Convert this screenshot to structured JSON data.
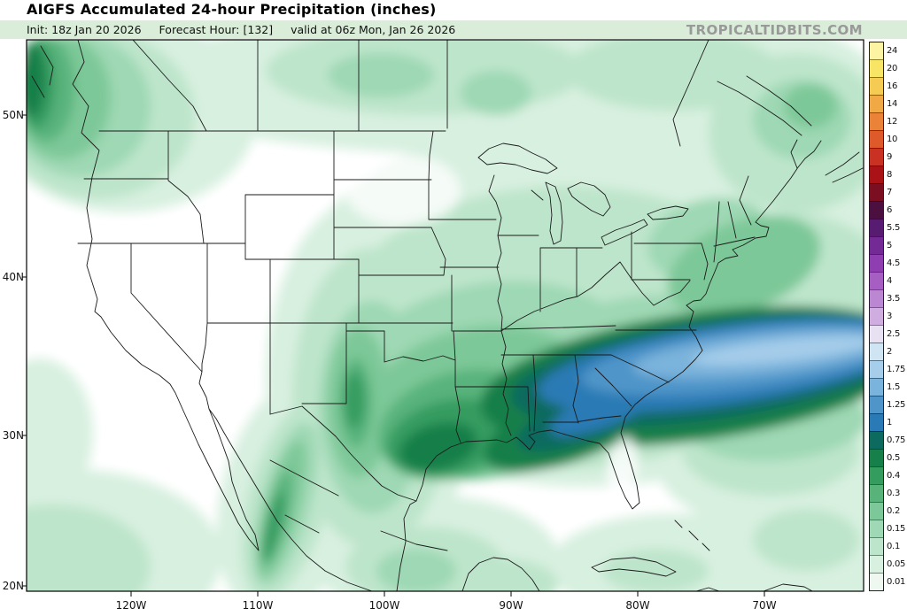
{
  "header": {
    "title": "AIGFS Accumulated 24-hour Precipitation (inches)",
    "init_label": "Init: 18z Jan 20 2026",
    "forecast_label": "Forecast Hour: [132]",
    "valid_label": "valid at 06z Mon, Jan 26 2026",
    "watermark": "TROPICALTIDBITS.COM"
  },
  "chart_data": {
    "type": "heatmap",
    "title": "AIGFS Accumulated 24-hour Precipitation (inches)",
    "model": "AIGFS",
    "init_time": "18z Jan 20 2026",
    "forecast_hour": "132",
    "valid_time": "06z Mon, Jan 26 2026",
    "units": "inches",
    "region": "Continental United States (approx 20N-55N, 125W-65W)",
    "axes": {
      "lat_ticks": [
        "50N",
        "40N",
        "30N",
        "20N"
      ],
      "lon_ticks": [
        "120W",
        "110W",
        "100W",
        "90W",
        "80W",
        "70W"
      ],
      "grid": false
    },
    "colorbar": {
      "position": "right",
      "levels_top_to_bottom": [
        {
          "label": "24",
          "color": "#fcf4a3"
        },
        {
          "label": "20",
          "color": "#f8e566"
        },
        {
          "label": "16",
          "color": "#f5cb53"
        },
        {
          "label": "14",
          "color": "#f0a945"
        },
        {
          "label": "12",
          "color": "#ea8338"
        },
        {
          "label": "10",
          "color": "#df5a2a"
        },
        {
          "label": "9",
          "color": "#c93222"
        },
        {
          "label": "8",
          "color": "#a91318"
        },
        {
          "label": "7",
          "color": "#7c0e21"
        },
        {
          "label": "6",
          "color": "#4c1040"
        },
        {
          "label": "5.5",
          "color": "#581b72"
        },
        {
          "label": "5",
          "color": "#732a94"
        },
        {
          "label": "4.5",
          "color": "#8e3eb0"
        },
        {
          "label": "4",
          "color": "#a75ec3"
        },
        {
          "label": "3.5",
          "color": "#bb86d2"
        },
        {
          "label": "3",
          "color": "#cfade1"
        },
        {
          "label": "2.5",
          "color": "#e7e1f2"
        },
        {
          "label": "2",
          "color": "#d0e5f4"
        },
        {
          "label": "1.75",
          "color": "#a6cdea"
        },
        {
          "label": "1.5",
          "color": "#7ab3db"
        },
        {
          "label": "1.25",
          "color": "#4f95c9"
        },
        {
          "label": "1",
          "color": "#2a7ab5"
        },
        {
          "label": "0.75",
          "color": "#0d6a5f"
        },
        {
          "label": "0.5",
          "color": "#177f49"
        },
        {
          "label": "0.4",
          "color": "#359c60"
        },
        {
          "label": "0.3",
          "color": "#58b37b"
        },
        {
          "label": "0.2",
          "color": "#7dc898"
        },
        {
          "label": "0.15",
          "color": "#9ed8b4"
        },
        {
          "label": "0.1",
          "color": "#bde5cb"
        },
        {
          "label": "0.05",
          "color": "#d8f0e0"
        },
        {
          "label": "0.01",
          "color": "#eef8f1"
        }
      ]
    },
    "precip_regions": [
      {
        "area": "Carolinas coast / western Atlantic band near 35N",
        "max_inches": "1.5-2"
      },
      {
        "area": "Gulf Coast (east Texas / Louisiana)",
        "max_inches": "0.4-0.75"
      },
      {
        "area": "Pacific Northwest / BC coast",
        "max_inches": "0.4-0.75"
      },
      {
        "area": "West Texas",
        "max_inches": "0.3-0.5"
      },
      {
        "area": "Sierra Madre Occidental (Mexico)",
        "max_inches": "0.2-0.4"
      },
      {
        "area": "Midwest / Northeast / southern Canada broad light precip",
        "max_inches": "0.05-0.2"
      },
      {
        "area": "Caribbean and southwest Pacific waters",
        "max_inches": "0.05-0.1"
      }
    ]
  }
}
